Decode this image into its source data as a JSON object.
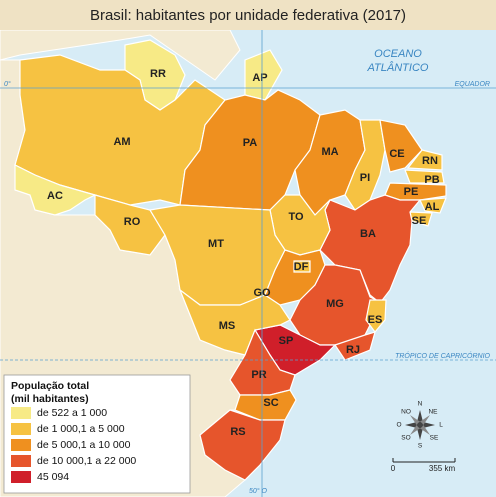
{
  "header": {
    "title": "Brasil: habitantes por unidade federativa (2017)"
  },
  "map": {
    "ocean": [
      "OCEANO",
      "ATLÂNTICO"
    ],
    "equator": "EQUADOR",
    "equator_degree": "0°",
    "tropic": "TRÓPICO DE CAPRICÓRNIO",
    "meridian": "50° O"
  },
  "legend": {
    "title": [
      "População total",
      "(mil habitantes)"
    ],
    "classes": [
      {
        "label": "de 522 a 1 000",
        "color": "#f7ea86"
      },
      {
        "label": "de 1 000,1 a 5 000",
        "color": "#f6c242"
      },
      {
        "label": "de 5 000,1 a 10 000",
        "color": "#ef901f"
      },
      {
        "label": "de 10 000,1 a 22 000",
        "color": "#e6552c"
      },
      {
        "label": "45 094",
        "color": "#d01f2a"
      }
    ]
  },
  "states": [
    {
      "label": "RR",
      "class": 0
    },
    {
      "label": "AP",
      "class": 0
    },
    {
      "label": "AM",
      "class": 1
    },
    {
      "label": "AC",
      "class": 0
    },
    {
      "label": "RO",
      "class": 1
    },
    {
      "label": "PA",
      "class": 2
    },
    {
      "label": "MA",
      "class": 2
    },
    {
      "label": "PI",
      "class": 1
    },
    {
      "label": "CE",
      "class": 2
    },
    {
      "label": "RN",
      "class": 1
    },
    {
      "label": "PB",
      "class": 1
    },
    {
      "label": "PE",
      "class": 2
    },
    {
      "label": "AL",
      "class": 1
    },
    {
      "label": "SE",
      "class": 1
    },
    {
      "label": "BA",
      "class": 3
    },
    {
      "label": "TO",
      "class": 1
    },
    {
      "label": "MT",
      "class": 1
    },
    {
      "label": "GO",
      "class": 2
    },
    {
      "label": "DF",
      "class": 1
    },
    {
      "label": "MG",
      "class": 3
    },
    {
      "label": "ES",
      "class": 1
    },
    {
      "label": "RJ",
      "class": 3
    },
    {
      "label": "SP",
      "class": 4
    },
    {
      "label": "MS",
      "class": 1
    },
    {
      "label": "PR",
      "class": 3
    },
    {
      "label": "SC",
      "class": 2
    },
    {
      "label": "RS",
      "class": 3
    }
  ],
  "compass": [
    "N",
    "NE",
    "L",
    "SE",
    "S",
    "SO",
    "O",
    "NO"
  ],
  "scale": {
    "start": "0",
    "end": "355 km"
  }
}
